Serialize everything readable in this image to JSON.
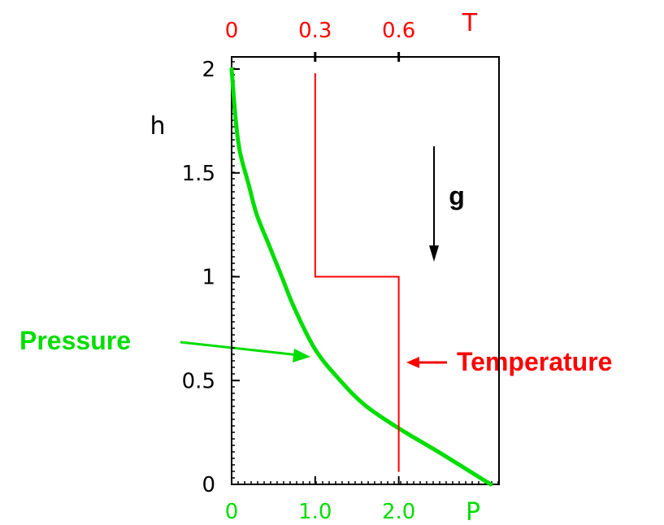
{
  "chart_data": {
    "type": "line",
    "title": "",
    "y_axis": {
      "label": "h",
      "ticks": [
        "0",
        "0.5",
        "1",
        "1.5",
        "2"
      ],
      "tick_values": [
        0,
        0.5,
        1,
        1.5,
        2
      ],
      "ylim": [
        0,
        2
      ],
      "color": "#000000"
    },
    "x_axis_bottom": {
      "label": "P",
      "ticks": [
        "0",
        "1.0",
        "2.0"
      ],
      "tick_values": [
        0,
        1,
        2
      ],
      "xlim": [
        0,
        3.2
      ],
      "color": "#00dd00"
    },
    "x_axis_top": {
      "label": "T",
      "ticks": [
        "0",
        "0.3",
        "0.6"
      ],
      "tick_values": [
        0,
        0.3,
        0.6
      ],
      "xlim": [
        0,
        0.96
      ],
      "color": "#ff0000"
    },
    "series": [
      {
        "name": "Pressure",
        "axis": "bottom",
        "color": "#00dd00",
        "x": [
          0,
          0.05,
          0.1,
          0.2,
          0.3,
          0.45,
          0.6,
          0.75,
          1.0,
          1.3,
          1.6,
          2.0,
          2.5,
          3.1
        ],
        "y": [
          2,
          1.75,
          1.6,
          1.45,
          1.3,
          1.15,
          1.0,
          0.85,
          0.65,
          0.5,
          0.38,
          0.27,
          0.15,
          0
        ]
      },
      {
        "name": "Temperature",
        "axis": "top",
        "color": "#ff0000",
        "x": [
          0.3,
          0.3,
          0.6,
          0.6
        ],
        "y": [
          1.98,
          1.0,
          1.0,
          0.06
        ]
      }
    ],
    "annotations": [
      {
        "text": "Pressure",
        "color": "#00dd00",
        "points_to": {
          "series": "Pressure",
          "x": 0.95,
          "y": 0.62
        }
      },
      {
        "text": "Temperature",
        "color": "#ff0000",
        "points_to": {
          "series": "Temperature",
          "x": 0.6,
          "y": 0.58
        }
      },
      {
        "text": "g",
        "color": "#000000",
        "arrow": "down"
      }
    ]
  }
}
